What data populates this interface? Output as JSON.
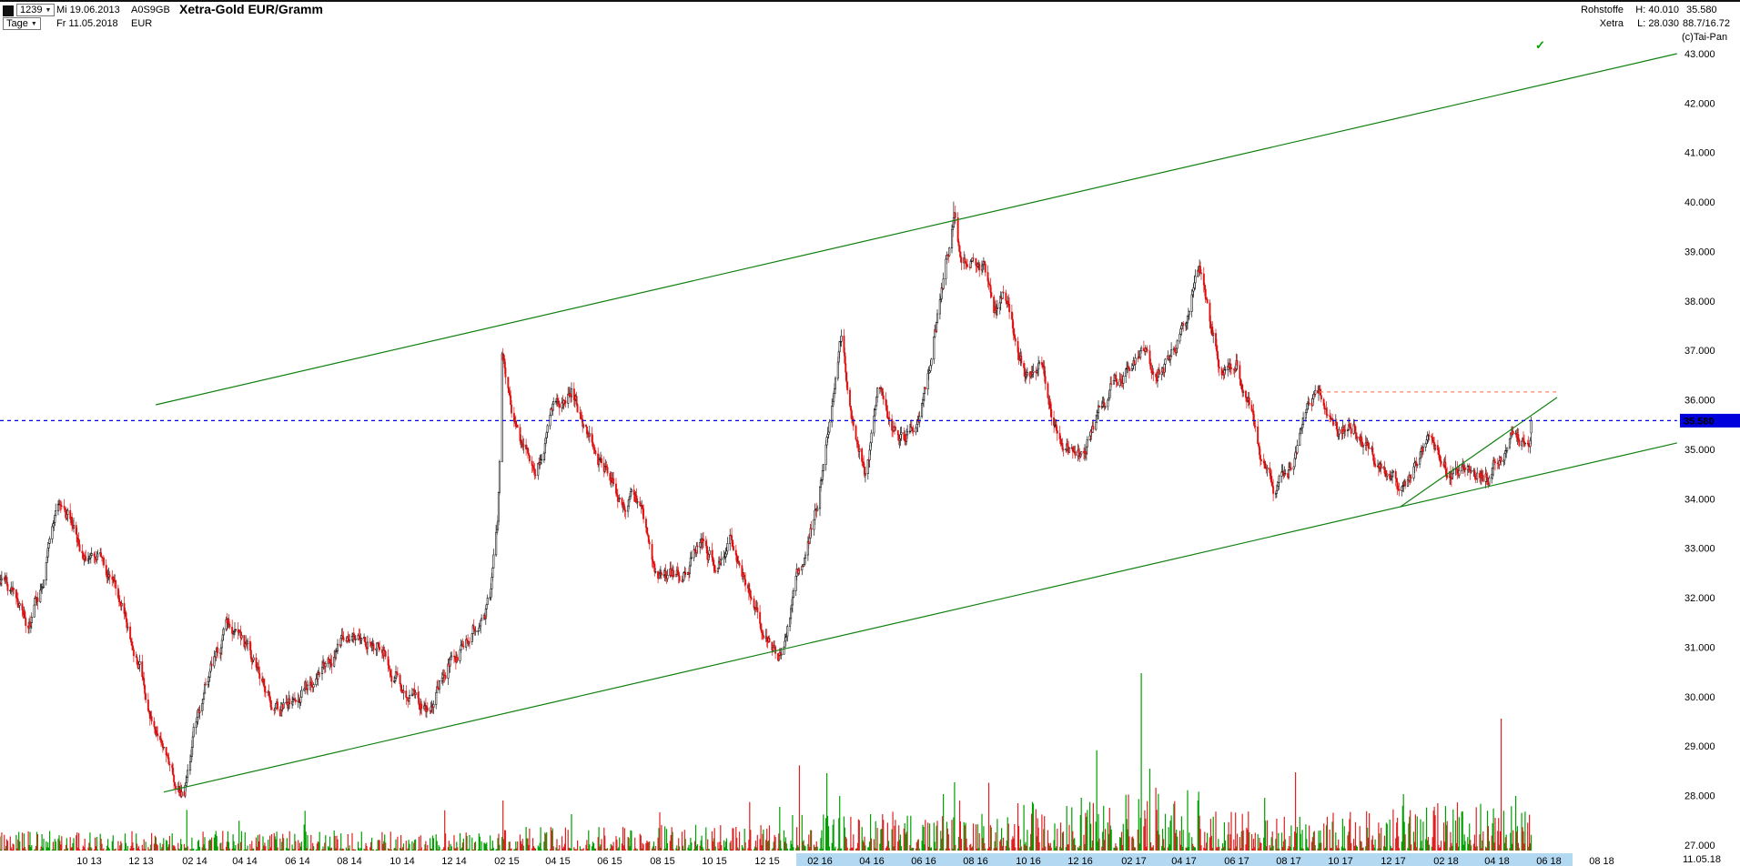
{
  "header": {
    "bars_count": "1239",
    "date_start_label": "Mi 19.06.2013",
    "wkn": "A0S9GB",
    "title": "Xetra-Gold EUR/Gramm",
    "period": "Tage",
    "date_end_label": "Fr 11.05.2018",
    "currency": "EUR",
    "category": "Rohstoffe",
    "exchange": "Xetra",
    "high_label": "H: 40.010",
    "low_label": "L: 28.030",
    "last_price": "35.580",
    "ratio": "88.7/16.72",
    "copyright": "(c)Tai-Pan",
    "last_date_corner": "11.05.18"
  },
  "icons": {
    "dropdown_arrow": "▼",
    "signal_check": "✓"
  },
  "colors": {
    "up": "#141414",
    "down": "#e01010",
    "vol_up": "#00a000",
    "vol_down": "#e02020",
    "trend": "#108010",
    "last_price_line": "#0000dd",
    "alert_line": "#ff8866",
    "band": "#b3d9f2",
    "tag_bg": "#0000dd",
    "tag_text": "#ffffff"
  },
  "axis": {
    "price_ticks": [
      43,
      42,
      41,
      40,
      39,
      38,
      37,
      36,
      35,
      34,
      33,
      32,
      31,
      30,
      29,
      28,
      27
    ],
    "x_labels": [
      "10 13",
      "12 13",
      "02 14",
      "04 14",
      "06 14",
      "08 14",
      "10 14",
      "12 14",
      "02 15",
      "04 15",
      "06 15",
      "08 15",
      "10 15",
      "12 15",
      "02 16",
      "04 16",
      "06 16",
      "08 16",
      "10 16",
      "12 16",
      "02 17",
      "04 17",
      "06 17",
      "08 17",
      "10 17",
      "12 17",
      "02 18",
      "04 18",
      "06 18",
      "08 18"
    ],
    "highlight_band": {
      "start": "02 16",
      "end": "06 18",
      "pad": 26
    }
  },
  "chart_data": {
    "type": "candlestick+volume",
    "instrument": "Xetra-Gold EUR/Gramm",
    "wkn": "A0S9GB",
    "timeframe": "daily",
    "start_date": "2013-06-19",
    "end_date": "2018-05-11",
    "bars_shown": 1239,
    "currency": "EUR",
    "ylim": [
      27,
      43
    ],
    "last_close": 35.58,
    "period_high": 40.01,
    "period_low": 28.03,
    "anchors": [
      [
        0,
        32.4
      ],
      [
        0.5,
        31.9
      ],
      [
        1,
        31.4
      ],
      [
        1.5,
        32.0
      ],
      [
        2.4,
        34.35
      ],
      [
        3,
        33.2
      ],
      [
        3.6,
        32.6
      ],
      [
        4.2,
        32.3
      ],
      [
        4.8,
        31.6
      ],
      [
        5.4,
        30.6
      ],
      [
        6,
        29.3
      ],
      [
        6.6,
        28.6
      ],
      [
        7.05,
        28.2
      ],
      [
        7.5,
        29.4
      ],
      [
        8.2,
        30.7
      ],
      [
        8.8,
        31.3
      ],
      [
        9.4,
        30.7
      ],
      [
        10,
        30.2
      ],
      [
        10.7,
        29.6
      ],
      [
        11.4,
        29.6
      ],
      [
        12.2,
        30.4
      ],
      [
        13,
        31.2
      ],
      [
        13.7,
        31.5
      ],
      [
        14.5,
        31.1
      ],
      [
        15.3,
        30.6
      ],
      [
        16,
        29.8
      ],
      [
        16.5,
        29.55
      ],
      [
        17.2,
        30.7
      ],
      [
        18,
        31.5
      ],
      [
        18.8,
        32.3
      ],
      [
        19.1,
        33.8
      ],
      [
        19.25,
        37.2
      ],
      [
        19.6,
        36.1
      ],
      [
        20,
        34.9
      ],
      [
        20.5,
        34.45
      ],
      [
        21.2,
        35.7
      ],
      [
        21.9,
        36.5
      ],
      [
        22.4,
        35.7
      ],
      [
        23.1,
        34.8
      ],
      [
        23.7,
        34.15
      ],
      [
        24.5,
        33.9
      ],
      [
        25.1,
        32.4
      ],
      [
        25.6,
        31.95
      ],
      [
        26.2,
        32.4
      ],
      [
        26.8,
        33.05
      ],
      [
        27.4,
        32.7
      ],
      [
        28,
        33.3
      ],
      [
        28.6,
        32.6
      ],
      [
        29.2,
        31.6
      ],
      [
        29.9,
        30.9
      ],
      [
        30.6,
        32.3
      ],
      [
        31.3,
        33.7
      ],
      [
        31.9,
        36.1
      ],
      [
        32.25,
        37.2
      ],
      [
        32.7,
        35.9
      ],
      [
        33.2,
        34.9
      ],
      [
        33.7,
        36.2
      ],
      [
        34.2,
        35.5
      ],
      [
        34.7,
        35.05
      ],
      [
        35.2,
        35.5
      ],
      [
        35.7,
        36.5
      ],
      [
        36.1,
        37.9
      ],
      [
        36.45,
        39.2
      ],
      [
        36.6,
        39.7
      ],
      [
        36.8,
        38.8
      ],
      [
        37.3,
        39.0
      ],
      [
        37.7,
        38.8
      ],
      [
        38.1,
        37.7
      ],
      [
        38.5,
        38.3
      ],
      [
        39,
        37.0
      ],
      [
        39.5,
        36.3
      ],
      [
        40,
        36.6
      ],
      [
        40.5,
        35.4
      ],
      [
        41.1,
        35.1
      ],
      [
        41.6,
        34.95
      ],
      [
        42.2,
        35.9
      ],
      [
        42.8,
        36.4
      ],
      [
        43.4,
        37.0
      ],
      [
        43.8,
        37.3
      ],
      [
        44.3,
        36.3
      ],
      [
        44.9,
        36.9
      ],
      [
        45.5,
        37.8
      ],
      [
        46,
        38.8
      ],
      [
        46.4,
        37.5
      ],
      [
        46.9,
        36.7
      ],
      [
        47.4,
        37.1
      ],
      [
        47.9,
        36.2
      ],
      [
        48.4,
        34.9
      ],
      [
        48.9,
        34.35
      ],
      [
        49.4,
        34.55
      ],
      [
        49.9,
        35.3
      ],
      [
        50.4,
        35.8
      ],
      [
        50.9,
        35.3
      ],
      [
        51.4,
        35.15
      ],
      [
        51.9,
        35.45
      ],
      [
        52.4,
        35.15
      ],
      [
        52.9,
        34.75
      ],
      [
        53.5,
        34.25
      ],
      [
        53.9,
        34.05
      ],
      [
        54.4,
        34.75
      ],
      [
        54.9,
        35.05
      ],
      [
        55.4,
        34.6
      ],
      [
        55.9,
        34.5
      ],
      [
        56.4,
        34.65
      ],
      [
        56.9,
        34.4
      ],
      [
        57.4,
        34.85
      ],
      [
        57.9,
        35.15
      ],
      [
        58.3,
        35.0
      ],
      [
        58.6,
        35.35
      ],
      [
        58.75,
        35.58
      ]
    ],
    "extremes": [
      {
        "t": 36.55,
        "high": 40.01
      },
      {
        "t": 7.05,
        "low": 28.03
      }
    ],
    "trendlines": [
      {
        "name": "upper-channel",
        "t1": 5.97,
        "p1": 35.9,
        "t2": 64.3,
        "p2": 43.0
      },
      {
        "name": "lower-channel",
        "t1": 6.28,
        "p1": 28.07,
        "t2": 64.3,
        "p2": 35.13
      },
      {
        "name": "short-support",
        "t1": 53.7,
        "p1": 33.84,
        "t2": 59.7,
        "p2": 36.05
      }
    ],
    "hlines": [
      {
        "name": "last-price-line",
        "price": 35.58,
        "t1": 0,
        "t2": 64.3,
        "style": "dashed",
        "tag": "35.580"
      },
      {
        "name": "alert-line",
        "price": 36.16,
        "t1": 50.6,
        "t2": 59.7,
        "style": "dashed"
      }
    ],
    "volume_profile": [
      [
        0,
        0.7
      ],
      [
        19,
        0.9
      ],
      [
        30,
        1.4
      ],
      [
        38,
        1.7
      ],
      [
        42,
        2.2
      ],
      [
        46,
        1.4
      ],
      [
        53,
        1.7
      ]
    ],
    "volume_spikes": [
      [
        19.3,
        55,
        "r"
      ],
      [
        21.9,
        40,
        "g"
      ],
      [
        25.3,
        42,
        "r"
      ],
      [
        29.9,
        48,
        "g"
      ],
      [
        31.7,
        85,
        "g"
      ],
      [
        32.2,
        60,
        "g"
      ],
      [
        36.2,
        62,
        "g"
      ],
      [
        36.6,
        75,
        "g"
      ],
      [
        39.0,
        52,
        "r"
      ],
      [
        41.5,
        58,
        "g"
      ],
      [
        43.8,
        195,
        "g"
      ],
      [
        44.1,
        90,
        "g"
      ],
      [
        45.9,
        55,
        "g"
      ],
      [
        48.5,
        58,
        "g"
      ],
      [
        53.8,
        62,
        "g"
      ],
      [
        55.1,
        52,
        "r"
      ],
      [
        57.6,
        145,
        "r"
      ],
      [
        58.1,
        60,
        "g"
      ]
    ]
  }
}
